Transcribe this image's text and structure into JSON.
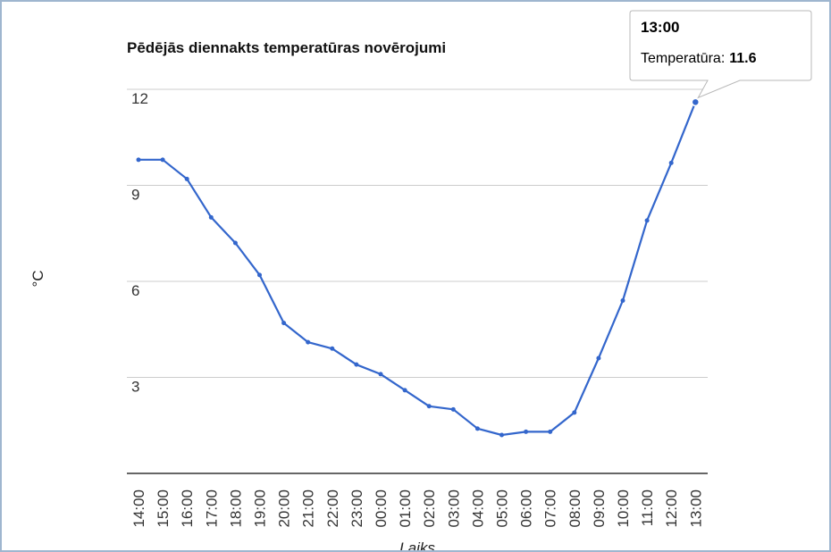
{
  "chart_data": {
    "type": "line",
    "title": "Pēdējās diennakts temperatūras novērojumi",
    "xlabel": "Laiks",
    "ylabel": "°C",
    "ylim": [
      0,
      12
    ],
    "yticks": [
      3,
      6,
      9,
      12
    ],
    "grid": true,
    "color": "#3366cc",
    "categories": [
      "14:00",
      "15:00",
      "16:00",
      "17:00",
      "18:00",
      "19:00",
      "20:00",
      "21:00",
      "22:00",
      "23:00",
      "00:00",
      "01:00",
      "02:00",
      "03:00",
      "04:00",
      "05:00",
      "06:00",
      "07:00",
      "08:00",
      "09:00",
      "10:00",
      "11:00",
      "12:00",
      "13:00"
    ],
    "series": [
      {
        "name": "Temperatūra",
        "values": [
          9.8,
          9.8,
          9.2,
          8.0,
          7.2,
          6.2,
          4.7,
          4.1,
          3.9,
          3.4,
          3.1,
          2.6,
          2.1,
          2.0,
          1.4,
          1.2,
          1.3,
          1.3,
          1.9,
          3.6,
          5.4,
          7.9,
          9.7,
          11.6
        ]
      }
    ],
    "tooltip": {
      "time": "13:00",
      "label": "Temperatūra:",
      "value": "11.6"
    }
  }
}
